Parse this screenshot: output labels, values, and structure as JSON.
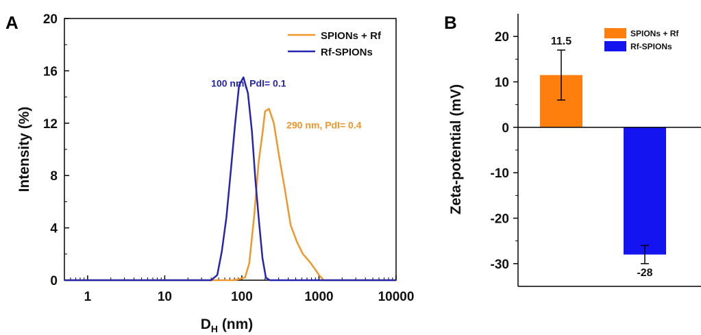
{
  "chart_data": [
    {
      "panel": "A",
      "type": "line",
      "title": "",
      "xlabel": "D",
      "xlabel_sub": "H",
      "xlabel_unit": " (nm)",
      "ylabel": "Intensity (%)",
      "xscale": "log",
      "xlim": [
        0.5,
        10000
      ],
      "ylim": [
        0,
        20
      ],
      "xticks": [
        1,
        10,
        100,
        1000,
        10000
      ],
      "xtick_labels": [
        "1",
        "10",
        "100",
        "1000",
        "10000"
      ],
      "yticks": [
        0,
        4,
        8,
        12,
        16,
        20
      ],
      "ytick_labels": [
        "0",
        "4",
        "8",
        "12",
        "16",
        "20"
      ],
      "legend_position": "top-right",
      "series": [
        {
          "name": "SPIONs + Rf",
          "color": "#F0962A",
          "points": [
            [
              0.5,
              0
            ],
            [
              40,
              0
            ],
            [
              80,
              0
            ],
            [
              110,
              0.2
            ],
            [
              125,
              1.3
            ],
            [
              145,
              5.0
            ],
            [
              165,
              9.0
            ],
            [
              185,
              11.2
            ],
            [
              200,
              12.9
            ],
            [
              225,
              13.1
            ],
            [
              260,
              12.0
            ],
            [
              300,
              9.7
            ],
            [
              360,
              7.0
            ],
            [
              430,
              4.2
            ],
            [
              520,
              2.9
            ],
            [
              620,
              2.0
            ],
            [
              760,
              1.4
            ],
            [
              900,
              0.8
            ],
            [
              1000,
              0.4
            ],
            [
              1150,
              0
            ],
            [
              10000,
              0
            ]
          ]
        },
        {
          "name": "Rf-SPIONs",
          "color": "#2424B0",
          "points": [
            [
              0.5,
              0
            ],
            [
              40,
              0
            ],
            [
              48,
              0.4
            ],
            [
              55,
              2.2
            ],
            [
              63,
              4.8
            ],
            [
              72,
              8.4
            ],
            [
              82,
              12.0
            ],
            [
              92,
              14.9
            ],
            [
              105,
              15.5
            ],
            [
              120,
              14.3
            ],
            [
              135,
              11.4
            ],
            [
              150,
              7.6
            ],
            [
              168,
              4.3
            ],
            [
              185,
              1.7
            ],
            [
              205,
              0.2
            ],
            [
              230,
              0
            ],
            [
              10000,
              0
            ]
          ]
        }
      ],
      "annotations": [
        {
          "text": "100 nm, PdI= 0.1",
          "color": "#2424B0",
          "at": [
            40,
            14.8
          ]
        },
        {
          "text": "290 nm, PdI= 0.4",
          "color": "#F0962A",
          "at": [
            380,
            11.6
          ]
        }
      ]
    },
    {
      "panel": "B",
      "type": "bar",
      "title": "",
      "xlabel": "",
      "ylabel": "Zeta-potential (mV)",
      "ylim": [
        -35,
        25
      ],
      "yticks": [
        -30,
        -20,
        -10,
        0,
        10,
        20
      ],
      "ytick_labels": [
        "-30",
        "-20",
        "-10",
        "0",
        "10",
        "20"
      ],
      "legend_position": "top-right",
      "categories": [
        "SPIONs + Rf",
        "Rf-SPIONs"
      ],
      "series": [
        {
          "name": "SPIONs + Rf",
          "color": "#FF7F0E",
          "value": 11.5,
          "error": 5.5,
          "label": "11.5"
        },
        {
          "name": "Rf-SPIONs",
          "color": "#1414F0",
          "value": -28,
          "error": 2.0,
          "label": "-28"
        }
      ]
    }
  ]
}
